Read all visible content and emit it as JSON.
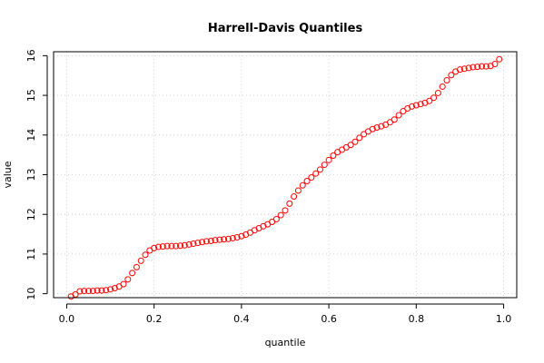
{
  "chart_data": {
    "type": "scatter",
    "title": "Harrell-Davis Quantiles",
    "xlabel": "quantile",
    "ylabel": "value",
    "xlim": [
      -0.03,
      1.03
    ],
    "ylim": [
      9.9,
      16.1
    ],
    "xticks": [
      0.0,
      0.2,
      0.4,
      0.6,
      0.8,
      1.0
    ],
    "xtick_labels": [
      "0.0",
      "0.2",
      "0.4",
      "0.6",
      "0.8",
      "1.0"
    ],
    "yticks": [
      10,
      11,
      12,
      13,
      14,
      15,
      16
    ],
    "ytick_labels": [
      "10",
      "11",
      "12",
      "13",
      "14",
      "15",
      "16"
    ],
    "grid": true,
    "marker": "open-circle",
    "point_color": "#ff0000",
    "x": [
      0.01,
      0.02,
      0.03,
      0.04,
      0.05,
      0.06,
      0.07,
      0.08,
      0.09,
      0.1,
      0.11,
      0.12,
      0.13,
      0.14,
      0.15,
      0.16,
      0.17,
      0.18,
      0.19,
      0.2,
      0.21,
      0.22,
      0.23,
      0.24,
      0.25,
      0.26,
      0.27,
      0.28,
      0.29,
      0.3,
      0.31,
      0.32,
      0.33,
      0.34,
      0.35,
      0.36,
      0.37,
      0.38,
      0.39,
      0.4,
      0.41,
      0.42,
      0.43,
      0.44,
      0.45,
      0.46,
      0.47,
      0.48,
      0.49,
      0.5,
      0.51,
      0.52,
      0.53,
      0.54,
      0.55,
      0.56,
      0.57,
      0.58,
      0.59,
      0.6,
      0.61,
      0.62,
      0.63,
      0.64,
      0.65,
      0.66,
      0.67,
      0.68,
      0.69,
      0.7,
      0.71,
      0.72,
      0.73,
      0.74,
      0.75,
      0.76,
      0.77,
      0.78,
      0.79,
      0.8,
      0.81,
      0.82,
      0.83,
      0.84,
      0.85,
      0.86,
      0.87,
      0.88,
      0.89,
      0.9,
      0.91,
      0.92,
      0.93,
      0.94,
      0.95,
      0.96,
      0.97,
      0.98,
      0.99
    ],
    "y": [
      9.93,
      9.98,
      10.06,
      10.07,
      10.07,
      10.07,
      10.08,
      10.08,
      10.09,
      10.11,
      10.14,
      10.18,
      10.24,
      10.36,
      10.52,
      10.67,
      10.83,
      10.98,
      11.09,
      11.15,
      11.18,
      11.19,
      11.2,
      11.2,
      11.2,
      11.21,
      11.22,
      11.24,
      11.26,
      11.28,
      11.3,
      11.32,
      11.33,
      11.35,
      11.36,
      11.37,
      11.38,
      11.4,
      11.42,
      11.45,
      11.49,
      11.54,
      11.6,
      11.65,
      11.7,
      11.75,
      11.81,
      11.88,
      11.98,
      12.1,
      12.27,
      12.45,
      12.6,
      12.73,
      12.84,
      12.93,
      13.03,
      13.13,
      13.25,
      13.37,
      13.48,
      13.57,
      13.63,
      13.69,
      13.75,
      13.83,
      13.93,
      14.02,
      14.09,
      14.15,
      14.19,
      14.22,
      14.26,
      14.32,
      14.39,
      14.5,
      14.6,
      14.67,
      14.72,
      14.75,
      14.78,
      14.81,
      14.86,
      14.94,
      15.06,
      15.22,
      15.38,
      15.51,
      15.6,
      15.65,
      15.67,
      15.69,
      15.71,
      15.72,
      15.73,
      15.73,
      15.74,
      15.79,
      15.91
    ]
  }
}
